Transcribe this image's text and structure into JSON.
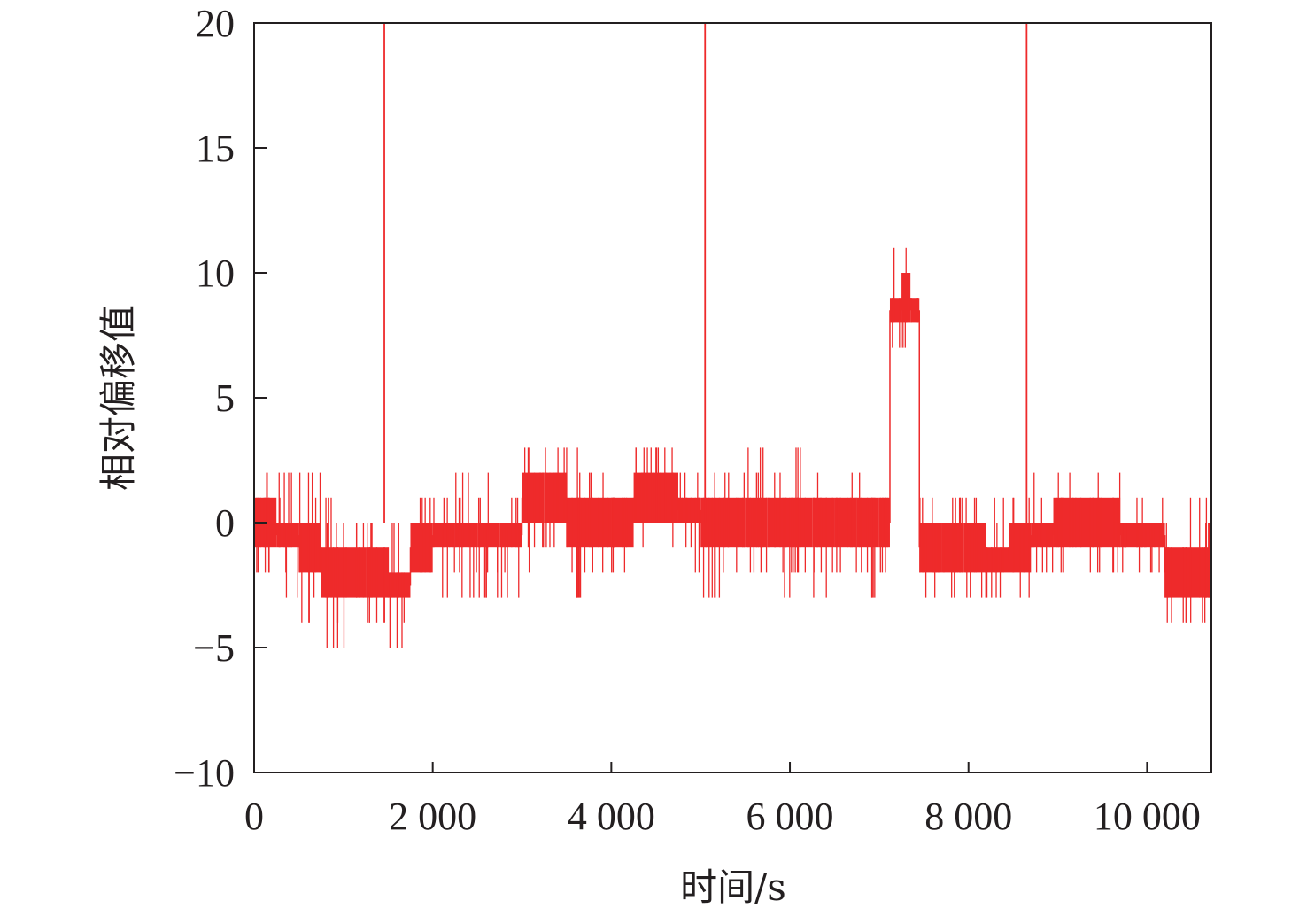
{
  "chart_data": {
    "type": "line",
    "title": "",
    "xlabel": "时间/s",
    "ylabel": "相对偏移值",
    "xlim": [
      0,
      10720
    ],
    "ylim": [
      -10,
      20
    ],
    "x_ticks": [
      0,
      2000,
      4000,
      6000,
      8000,
      10000
    ],
    "x_tick_labels": [
      "0",
      "2 000",
      "4 000",
      "6 000",
      "8 000",
      "10 000"
    ],
    "y_ticks": [
      -10,
      -5,
      0,
      5,
      10,
      15,
      20
    ],
    "y_tick_labels": [
      "−10",
      "−5",
      "0",
      "5",
      "10",
      "15",
      "20"
    ],
    "grid": false,
    "legend": "none",
    "color": "#ee2a2b",
    "signal_envelope": {
      "x_start": [
        0,
        250,
        500,
        750,
        1000,
        1250,
        1500,
        1750,
        2000,
        2250,
        2500,
        2750,
        3000,
        3250,
        3500,
        3750,
        4000,
        4250,
        4500,
        4750,
        5000,
        5250,
        5500,
        5750,
        6000,
        6250,
        6500,
        6750,
        7000,
        7120,
        7250,
        7350,
        7450,
        7700,
        7950,
        8200,
        8450,
        8700,
        8950,
        9200,
        9450,
        9700,
        9950,
        10200,
        10450
      ],
      "x_end": [
        250,
        500,
        750,
        1000,
        1250,
        1500,
        1750,
        2000,
        2250,
        2500,
        2750,
        3000,
        3250,
        3500,
        3750,
        4000,
        4250,
        4500,
        4750,
        5000,
        5250,
        5500,
        5750,
        6000,
        6250,
        6500,
        6750,
        7000,
        7120,
        7250,
        7350,
        7450,
        7700,
        7950,
        8200,
        8450,
        8700,
        8950,
        9200,
        9450,
        9700,
        9950,
        10200,
        10450,
        10720
      ],
      "band_low": [
        -1,
        -1,
        -2,
        -3,
        -3,
        -3,
        -3,
        -2,
        -1,
        -1,
        -1,
        -1,
        0,
        0,
        -1,
        -1,
        -1,
        0,
        0,
        0,
        -1,
        -1,
        -1,
        -1,
        -1,
        -1,
        -1,
        -1,
        -1,
        8,
        8,
        8,
        -2,
        -2,
        -2,
        -2,
        -2,
        -1,
        -1,
        -1,
        -1,
        -1,
        -1,
        -3,
        -3
      ],
      "band_high": [
        1,
        0,
        0,
        -1,
        -1,
        -1,
        -2,
        0,
        0,
        0,
        0,
        0,
        2,
        2,
        1,
        1,
        1,
        2,
        2,
        1,
        1,
        1,
        1,
        1,
        1,
        1,
        1,
        1,
        1,
        9,
        10,
        9,
        0,
        0,
        0,
        -1,
        0,
        0,
        1,
        1,
        1,
        0,
        0,
        -1,
        -1
      ],
      "min": [
        -2,
        -3,
        -4,
        -5,
        -5,
        -4,
        -5,
        -3,
        -3,
        -3,
        -3,
        -3,
        -2,
        -1,
        -3,
        -2,
        -2,
        -1,
        -1,
        -2,
        -3,
        -2,
        -2,
        -3,
        -2,
        -3,
        -2,
        -3,
        -2,
        7,
        7,
        5,
        -3,
        -3,
        -3,
        -3,
        -3,
        -2,
        -2,
        -2,
        -2,
        -2,
        -2,
        -4,
        -4
      ],
      "max": [
        2,
        2,
        2,
        1,
        0,
        0,
        0,
        1,
        1,
        2,
        2,
        1,
        3,
        3,
        3,
        2,
        1,
        3,
        3,
        2,
        2,
        2,
        3,
        2,
        3,
        2,
        2,
        2,
        1,
        11,
        11,
        10,
        1,
        1,
        1,
        1,
        1,
        2,
        2,
        2,
        2,
        1,
        1,
        0,
        1
      ]
    },
    "impulses": [
      {
        "x": 1458,
        "y_from": 0,
        "y_to": 20
      },
      {
        "x": 5050,
        "y_from": 0,
        "y_to": 20
      },
      {
        "x": 8651,
        "y_from": 0,
        "y_to": 20
      }
    ]
  }
}
